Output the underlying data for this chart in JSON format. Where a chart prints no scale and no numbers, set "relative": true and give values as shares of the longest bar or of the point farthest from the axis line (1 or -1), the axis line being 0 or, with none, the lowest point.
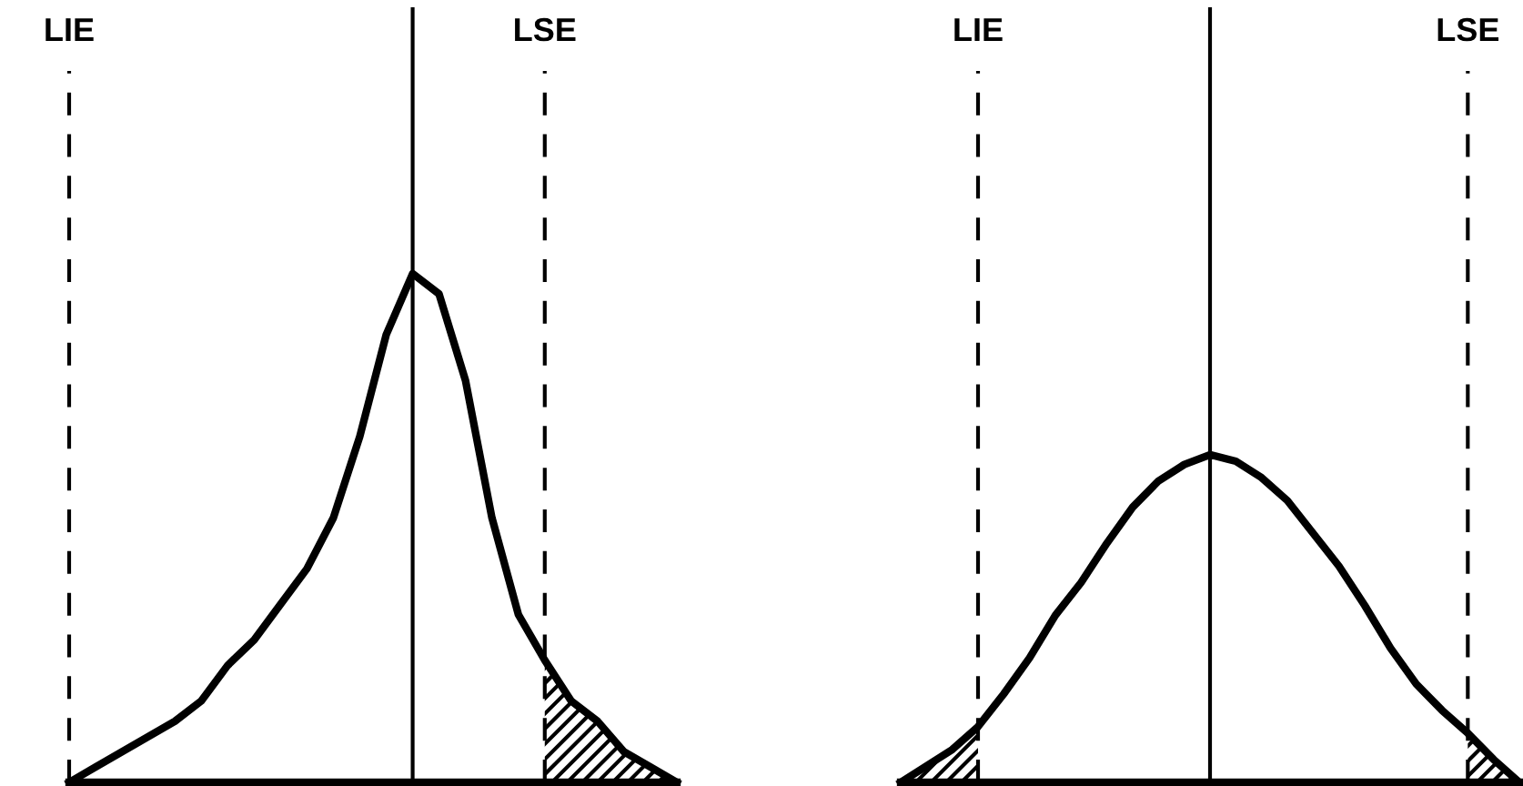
{
  "chart_data": [
    {
      "type": "line",
      "relative": true,
      "line_style": "solid",
      "categories": [
        null,
        null,
        null,
        null,
        null,
        null,
        null,
        null,
        null,
        null,
        null,
        null,
        null,
        null,
        null,
        null,
        null,
        null,
        null,
        null,
        null,
        null,
        null,
        null
      ],
      "series": [
        {
          "color": "#000000",
          "values": [
            0,
            0.03,
            0.06,
            0.09,
            0.12,
            0.16,
            0.23,
            0.28,
            0.35,
            0.42,
            0.52,
            0.68,
            0.88,
            1,
            0.96,
            0.79,
            0.52,
            0.33,
            0.24,
            0.16,
            0.12,
            0.06,
            0.03,
            0
          ]
        },
        {
          "type": "area",
          "color": "#000000",
          "values": [
            null,
            null,
            null,
            null,
            null,
            null,
            null,
            null,
            null,
            null,
            null,
            null,
            null,
            null,
            null,
            null,
            null,
            null,
            0.24,
            0.16,
            0.12,
            0.06,
            0.03,
            0
          ]
        }
      ],
      "annotations": [
        "LIE",
        "LSE"
      ]
    },
    {
      "type": "line",
      "relative": true,
      "line_style": "solid",
      "categories": [
        null,
        null,
        null,
        null,
        null,
        null,
        null,
        null,
        null,
        null,
        null,
        null,
        null,
        null,
        null,
        null,
        null,
        null,
        null,
        null,
        null,
        null,
        null,
        null,
        null
      ],
      "series": [
        {
          "color": "#000000",
          "values": [
            0,
            0.05,
            0.1,
            0.17,
            0.27,
            0.38,
            0.51,
            0.61,
            0.73,
            0.84,
            0.92,
            0.97,
            1,
            0.98,
            0.93,
            0.86,
            0.76,
            0.66,
            0.54,
            0.41,
            0.3,
            0.22,
            0.15,
            0.07,
            0
          ]
        },
        {
          "type": "area",
          "color": "#000000",
          "values": [
            0,
            0.05,
            0.1,
            0.17,
            null,
            null,
            null,
            null,
            null,
            null,
            null,
            null,
            null,
            null,
            null,
            null,
            null,
            null,
            null,
            null,
            null,
            null,
            0.15,
            0.07,
            0
          ]
        }
      ],
      "annotations": [
        "LIE",
        "LSE"
      ]
    }
  ]
}
